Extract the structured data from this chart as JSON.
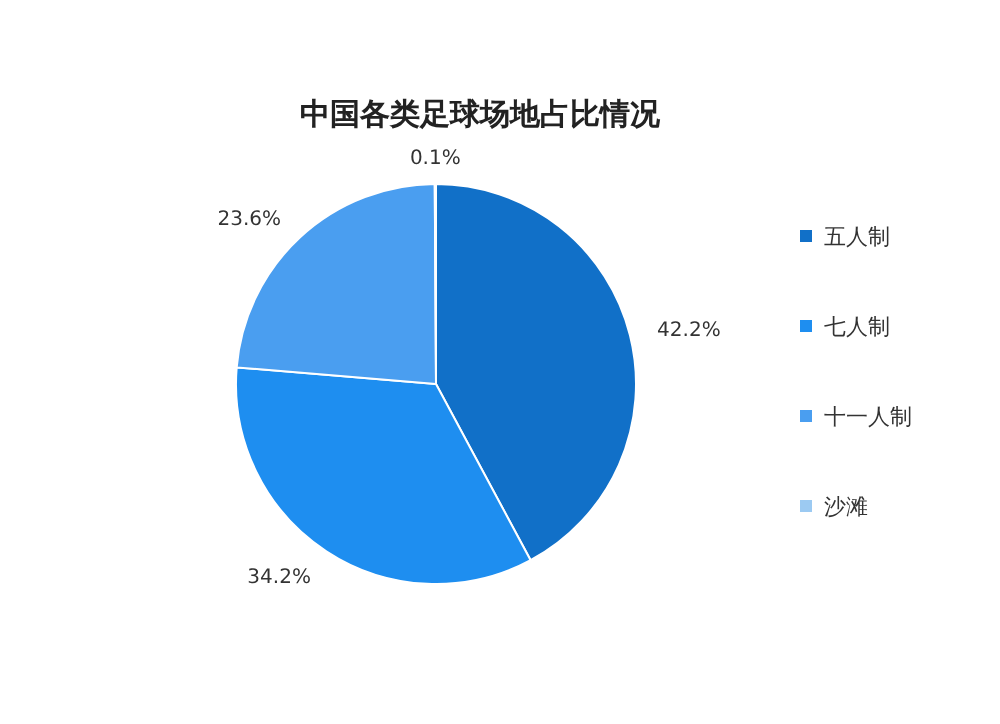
{
  "chart_data": {
    "type": "pie",
    "title": "中国各类足球场地占比情况",
    "categories": [
      "五人制",
      "七人制",
      "十一人制",
      "沙滩"
    ],
    "values": [
      42.2,
      34.2,
      23.6,
      0.1
    ],
    "colors": [
      "#1170c8",
      "#1e8ef0",
      "#4a9ef0",
      "#9ccaf2"
    ],
    "value_labels": [
      "42.2%",
      "34.2%",
      "23.6%",
      "0.1%"
    ],
    "legend": "right"
  }
}
